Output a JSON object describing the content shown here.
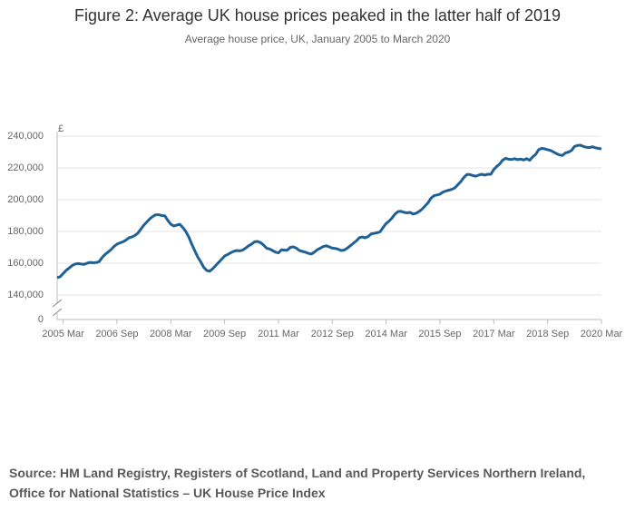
{
  "chart_data": {
    "type": "line",
    "title": "Figure 2: Average UK house prices peaked in the latter half of 2019",
    "subtitle": "Average house price, UK, January 2005 to March 2020",
    "y_unit": "£",
    "categories": [
      null,
      null,
      "2005 Mar",
      null,
      null,
      null,
      null,
      null,
      null,
      null,
      null,
      null,
      null,
      null,
      null,
      null,
      null,
      null,
      null,
      null,
      "2006 Sep",
      null,
      null,
      null,
      null,
      null,
      null,
      null,
      null,
      null,
      null,
      null,
      null,
      null,
      null,
      null,
      null,
      null,
      "2008 Mar",
      null,
      null,
      null,
      null,
      null,
      null,
      null,
      null,
      null,
      null,
      null,
      null,
      null,
      null,
      null,
      null,
      null,
      "2009 Sep",
      null,
      null,
      null,
      null,
      null,
      null,
      null,
      null,
      null,
      null,
      null,
      null,
      null,
      null,
      null,
      null,
      null,
      "2011 Mar",
      null,
      null,
      null,
      null,
      null,
      null,
      null,
      null,
      null,
      null,
      null,
      null,
      null,
      null,
      null,
      null,
      null,
      "2012 Sep",
      null,
      null,
      null,
      null,
      null,
      null,
      null,
      null,
      null,
      null,
      null,
      null,
      null,
      null,
      null,
      null,
      null,
      "2014 Mar",
      null,
      null,
      null,
      null,
      null,
      null,
      null,
      null,
      null,
      null,
      null,
      null,
      null,
      null,
      null,
      null,
      null,
      "2015 Sep",
      null,
      null,
      null,
      null,
      null,
      null,
      null,
      null,
      null,
      null,
      null,
      null,
      null,
      null,
      null,
      null,
      null,
      "2017 Mar",
      null,
      null,
      null,
      null,
      null,
      null,
      null,
      null,
      null,
      null,
      null,
      null,
      null,
      null,
      null,
      null,
      null,
      "2018 Sep",
      null,
      null,
      null,
      null,
      null,
      null,
      null,
      null,
      null,
      null,
      null,
      null,
      null,
      null,
      null,
      null,
      null,
      "2020 Mar"
    ],
    "series": [
      {
        "color": "#206095",
        "values": [
          151000,
          151500,
          153500,
          155500,
          157000,
          158500,
          159500,
          159800,
          159500,
          159300,
          160000,
          160500,
          160300,
          160400,
          161000,
          163500,
          165500,
          167000,
          168500,
          170500,
          172000,
          172800,
          173500,
          174500,
          176000,
          176500,
          177500,
          179000,
          181500,
          184000,
          186000,
          188000,
          189500,
          190500,
          190500,
          190000,
          189800,
          187000,
          184500,
          183500,
          184000,
          184500,
          182500,
          180000,
          176500,
          172000,
          168000,
          164000,
          161000,
          157500,
          155500,
          155000,
          156500,
          158500,
          160500,
          162500,
          164500,
          165500,
          166500,
          167500,
          168000,
          167800,
          168200,
          169500,
          171000,
          172000,
          173500,
          173700,
          173000,
          171500,
          169500,
          169000,
          168000,
          167000,
          166500,
          168500,
          168200,
          168300,
          170000,
          170300,
          169500,
          168000,
          167500,
          167000,
          166200,
          165800,
          167000,
          168500,
          169500,
          170500,
          171000,
          170300,
          169500,
          169300,
          168800,
          168000,
          168300,
          169500,
          171000,
          172500,
          174000,
          176000,
          176500,
          176000,
          176800,
          178500,
          178800,
          179200,
          179800,
          182500,
          185000,
          186500,
          188500,
          191000,
          192500,
          192700,
          192000,
          191700,
          192000,
          191000,
          191500,
          192500,
          194000,
          196000,
          198000,
          201000,
          202500,
          203000,
          203500,
          204800,
          205500,
          206000,
          206500,
          207500,
          209500,
          211500,
          214000,
          215800,
          215800,
          215200,
          214800,
          215500,
          216000,
          215500,
          216000,
          216000,
          219000,
          221000,
          222500,
          225000,
          226000,
          225500,
          225300,
          225800,
          225200,
          225600,
          225000,
          225800,
          224800,
          227000,
          228500,
          231500,
          232300,
          232000,
          231500,
          231000,
          230000,
          229000,
          228200,
          227800,
          229500,
          230000,
          231000,
          233500,
          234200,
          234300,
          233500,
          233000,
          232800,
          233300,
          232700,
          232300,
          232000
        ]
      }
    ],
    "ylim": [
      140000,
      240000
    ],
    "yticks": [
      0,
      {
        "value": 140000,
        "label": "140,000"
      },
      {
        "value": 160000,
        "label": "160,000"
      },
      {
        "value": 180000,
        "label": "180,000"
      },
      {
        "value": 200000,
        "label": "200,000"
      },
      {
        "value": 220000,
        "label": "220,000"
      },
      {
        "value": 240000,
        "label": "240,000"
      }
    ],
    "axis_break": true,
    "grid": true,
    "source": "Source: HM Land Registry, Registers of Scotland, Land and Property Services Northern Ireland, Office for National Statistics – UK House Price Index"
  }
}
